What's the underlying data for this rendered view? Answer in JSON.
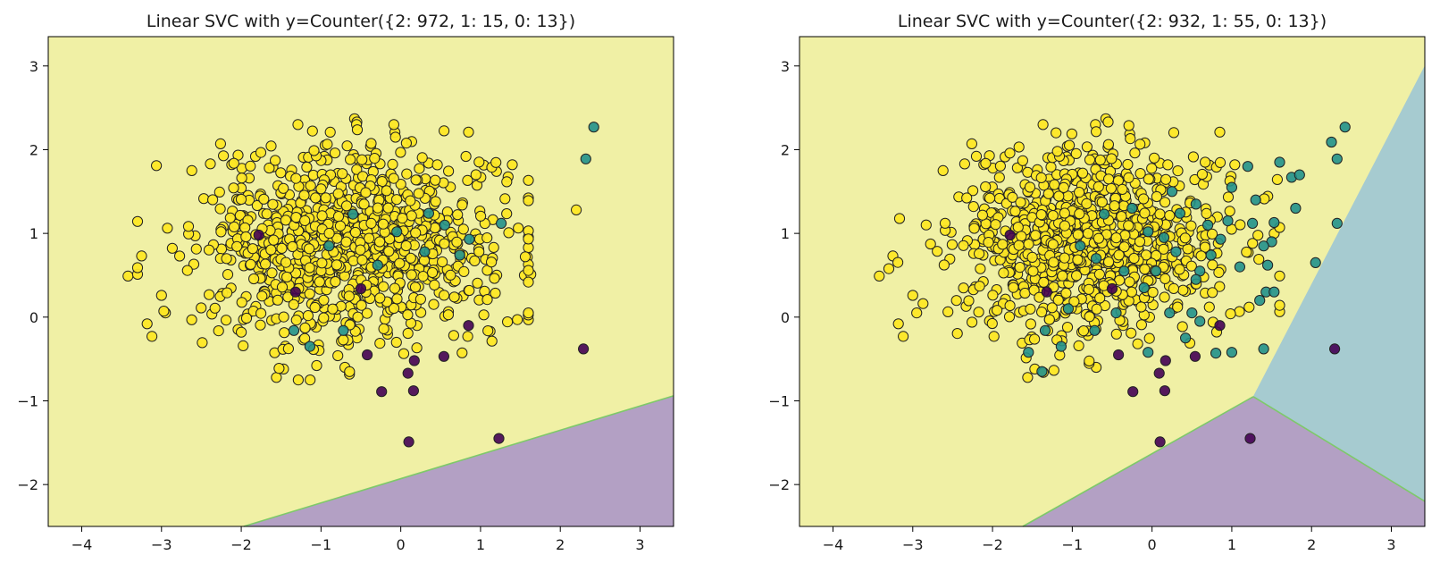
{
  "colors": {
    "class0": "#440154",
    "class1": "#21918c",
    "class2": "#fde725",
    "region0": "#b3a0c4",
    "region1": "#a6cbd0",
    "region2": "#f0f0a5",
    "boundary": "#7ec96a",
    "point_edge": "#222222"
  },
  "chart_data": [
    {
      "type": "scatter",
      "title": "Linear SVC with y=Counter({2: 972, 1: 15, 0: 13})",
      "xlabel": "",
      "ylabel": "",
      "xlim": [
        -4.42,
        3.42
      ],
      "ylim": [
        -2.5,
        3.35
      ],
      "xticks": [
        -4,
        -3,
        -2,
        -1,
        0,
        1,
        2,
        3
      ],
      "yticks": [
        -2,
        -1,
        0,
        1,
        2,
        3
      ],
      "grid": false,
      "decision_regions": [
        {
          "class": 2,
          "polygon": [
            [
              -4.42,
              3.35
            ],
            [
              3.42,
              3.35
            ],
            [
              3.42,
              -0.94
            ],
            [
              -1.97,
              -2.5
            ],
            [
              -4.42,
              -2.5
            ]
          ]
        },
        {
          "class": 0,
          "polygon": [
            [
              -1.97,
              -2.5
            ],
            [
              3.42,
              -0.94
            ],
            [
              3.42,
              -2.5
            ]
          ]
        }
      ],
      "series": [
        {
          "class": 0,
          "points": [
            [
              -1.78,
              0.98
            ],
            [
              -1.32,
              0.3
            ],
            [
              -0.5,
              0.34
            ],
            [
              0.17,
              -0.52
            ],
            [
              0.54,
              -0.47
            ],
            [
              0.09,
              -0.67
            ],
            [
              -0.24,
              -0.89
            ],
            [
              0.16,
              -0.88
            ],
            [
              0.1,
              -1.49
            ],
            [
              1.23,
              -1.45
            ],
            [
              2.29,
              -0.38
            ],
            [
              -0.42,
              -0.45
            ],
            [
              0.85,
              -0.1
            ]
          ]
        },
        {
          "class": 1,
          "points": [
            [
              2.42,
              2.27
            ],
            [
              2.32,
              1.89
            ],
            [
              -0.6,
              1.23
            ],
            [
              0.35,
              1.24
            ],
            [
              0.74,
              0.74
            ],
            [
              -1.34,
              -0.16
            ],
            [
              -1.14,
              -0.35
            ],
            [
              -0.72,
              -0.16
            ],
            [
              0.86,
              0.93
            ],
            [
              1.26,
              1.12
            ],
            [
              -0.05,
              1.02
            ],
            [
              0.55,
              1.1
            ],
            [
              -0.29,
              0.62
            ],
            [
              0.3,
              0.78
            ],
            [
              -0.9,
              0.85
            ]
          ]
        },
        {
          "class": 2,
          "generated": {
            "count": 972,
            "mean": [
              -0.6,
              0.85
            ],
            "std": [
              0.95,
              0.58
            ],
            "seed": 7
          },
          "points": [
            [
              -3.42,
              0.49
            ],
            [
              -3.25,
              0.73
            ],
            [
              -3.18,
              -0.08
            ],
            [
              -3.12,
              -0.23
            ],
            [
              -3.0,
              0.26
            ],
            [
              -2.95,
              0.05
            ],
            [
              -2.62,
              1.75
            ],
            [
              -2.26,
              2.07
            ],
            [
              -0.58,
              2.37
            ],
            [
              -0.55,
              2.33
            ],
            [
              0.85,
              2.21
            ],
            [
              1.2,
              1.74
            ],
            [
              2.2,
              1.28
            ],
            [
              1.55,
              0.5
            ],
            [
              1.63,
              0.51
            ],
            [
              1.05,
              0.31
            ],
            [
              0.84,
              -0.23
            ],
            [
              1.12,
              -0.17
            ],
            [
              -0.7,
              -0.6
            ],
            [
              -1.56,
              -0.72
            ],
            [
              -1.47,
              -0.62
            ],
            [
              -1.06,
              -0.12
            ]
          ]
        }
      ]
    },
    {
      "type": "scatter",
      "title": "Linear SVC with y=Counter({2: 932, 1: 55, 0: 13})",
      "xlabel": "",
      "ylabel": "",
      "xlim": [
        -4.42,
        3.42
      ],
      "ylim": [
        -2.5,
        3.35
      ],
      "xticks": [
        -4,
        -3,
        -2,
        -1,
        0,
        1,
        2,
        3
      ],
      "yticks": [
        -2,
        -1,
        0,
        1,
        2,
        3
      ],
      "grid": false,
      "decision_regions": [
        {
          "class": 2,
          "polygon": [
            [
              -4.42,
              3.35
            ],
            [
              3.42,
              3.35
            ],
            [
              3.42,
              3.0
            ],
            [
              1.27,
              -0.95
            ],
            [
              -1.62,
              -2.5
            ],
            [
              -4.42,
              -2.5
            ]
          ]
        },
        {
          "class": 1,
          "polygon": [
            [
              3.42,
              3.0
            ],
            [
              3.42,
              -2.2
            ],
            [
              1.27,
              -0.95
            ]
          ]
        },
        {
          "class": 0,
          "polygon": [
            [
              -1.62,
              -2.5
            ],
            [
              1.27,
              -0.95
            ],
            [
              3.42,
              -2.2
            ],
            [
              3.42,
              -2.5
            ]
          ]
        }
      ],
      "series": [
        {
          "class": 0,
          "points": [
            [
              -1.78,
              0.98
            ],
            [
              -1.32,
              0.3
            ],
            [
              -0.5,
              0.34
            ],
            [
              0.17,
              -0.52
            ],
            [
              0.54,
              -0.47
            ],
            [
              0.09,
              -0.67
            ],
            [
              -0.24,
              -0.89
            ],
            [
              0.16,
              -0.88
            ],
            [
              0.1,
              -1.49
            ],
            [
              1.23,
              -1.45
            ],
            [
              2.29,
              -0.38
            ],
            [
              -0.42,
              -0.45
            ],
            [
              0.85,
              -0.1
            ]
          ]
        },
        {
          "class": 1,
          "points": [
            [
              2.42,
              2.27
            ],
            [
              2.32,
              1.89
            ],
            [
              2.25,
              2.09
            ],
            [
              1.75,
              1.67
            ],
            [
              1.8,
              1.3
            ],
            [
              1.53,
              1.13
            ],
            [
              1.5,
              0.9
            ],
            [
              1.45,
              0.62
            ],
            [
              1.43,
              0.3
            ],
            [
              1.35,
              0.2
            ],
            [
              1.53,
              0.3
            ],
            [
              1.4,
              -0.38
            ],
            [
              1.0,
              -0.42
            ],
            [
              0.8,
              -0.43
            ],
            [
              0.6,
              -0.05
            ],
            [
              0.5,
              0.05
            ],
            [
              0.6,
              0.55
            ],
            [
              0.55,
              0.45
            ],
            [
              0.3,
              0.78
            ],
            [
              0.22,
              0.05
            ],
            [
              -0.05,
              -0.42
            ],
            [
              -0.1,
              0.35
            ],
            [
              -0.35,
              0.55
            ],
            [
              -0.6,
              1.23
            ],
            [
              0.35,
              1.24
            ],
            [
              0.74,
              0.74
            ],
            [
              0.86,
              0.93
            ],
            [
              1.26,
              1.12
            ],
            [
              1.4,
              0.85
            ],
            [
              1.1,
              0.6
            ],
            [
              1.2,
              1.8
            ],
            [
              1.0,
              1.55
            ],
            [
              0.95,
              1.15
            ],
            [
              0.7,
              1.1
            ],
            [
              0.55,
              1.35
            ],
            [
              0.25,
              1.5
            ],
            [
              -0.05,
              1.02
            ],
            [
              -1.34,
              -0.16
            ],
            [
              -1.14,
              -0.35
            ],
            [
              -0.72,
              -0.16
            ],
            [
              -0.9,
              0.85
            ],
            [
              -1.38,
              -0.65
            ],
            [
              -1.55,
              -0.42
            ],
            [
              -1.05,
              0.1
            ],
            [
              -0.45,
              0.05
            ],
            [
              0.42,
              -0.25
            ],
            [
              2.05,
              0.65
            ],
            [
              2.32,
              1.12
            ],
            [
              1.85,
              1.7
            ],
            [
              1.6,
              1.85
            ],
            [
              1.3,
              1.4
            ],
            [
              0.15,
              0.95
            ],
            [
              -0.25,
              1.3
            ],
            [
              -0.7,
              0.7
            ],
            [
              0.05,
              0.55
            ]
          ]
        },
        {
          "class": 2,
          "generated": {
            "count": 932,
            "mean": [
              -0.75,
              0.9
            ],
            "std": [
              0.85,
              0.55
            ],
            "seed": 7
          },
          "points": [
            [
              -3.42,
              0.49
            ],
            [
              -3.25,
              0.73
            ],
            [
              -3.18,
              -0.08
            ],
            [
              -3.12,
              -0.23
            ],
            [
              -3.0,
              0.26
            ],
            [
              -2.95,
              0.05
            ],
            [
              -2.62,
              1.75
            ],
            [
              -2.26,
              2.07
            ],
            [
              -0.58,
              2.37
            ],
            [
              -0.55,
              2.33
            ],
            [
              0.85,
              2.21
            ],
            [
              -0.7,
              -0.6
            ],
            [
              -1.56,
              -0.72
            ],
            [
              -1.47,
              -0.62
            ],
            [
              -1.06,
              -0.12
            ]
          ]
        }
      ]
    }
  ]
}
